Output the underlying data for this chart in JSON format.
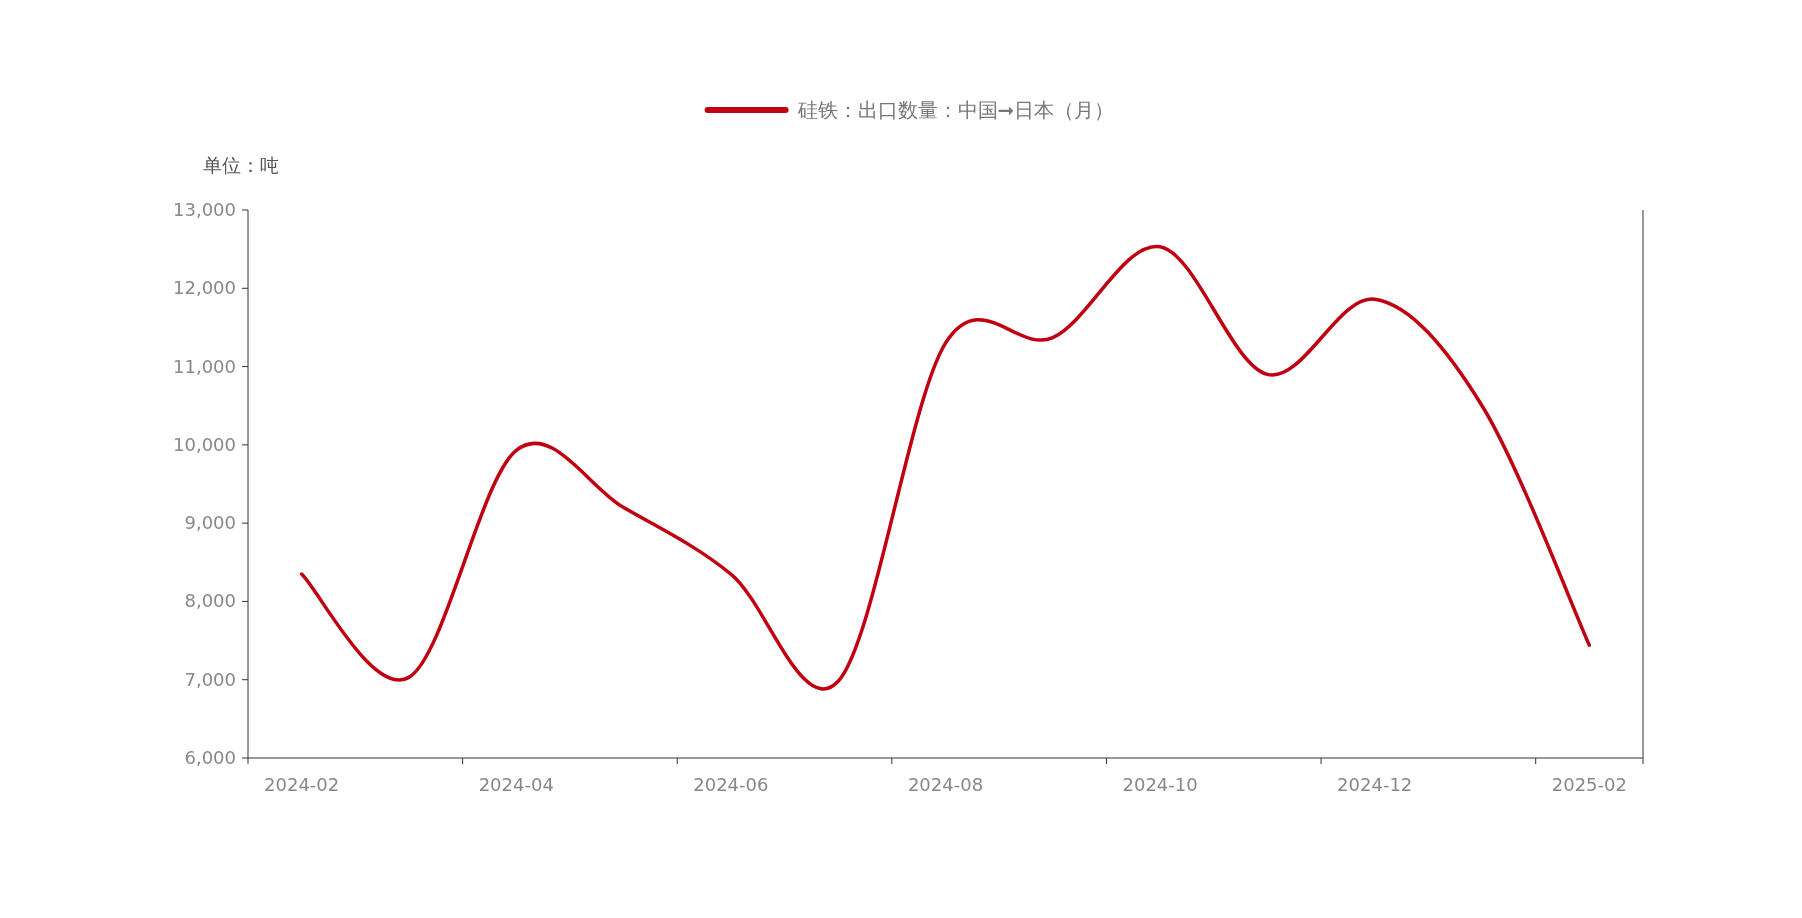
{
  "chart_data": {
    "type": "line",
    "ylabel": "单位：吨",
    "categories": [
      "2024-02",
      null,
      "2024-04",
      null,
      "2024-06",
      null,
      "2024-08",
      null,
      "2024-10",
      null,
      "2024-12",
      null,
      "2025-02"
    ],
    "series": [
      {
        "name": "硅铁：出口数量：中国➞日本（月）",
        "color": "#c00010",
        "values": [
          8350,
          7030,
          9930,
          9200,
          8350,
          6980,
          11300,
          11370,
          12530,
          10900,
          11860,
          10500,
          7440
        ]
      }
    ],
    "ylim": [
      6000,
      13000
    ],
    "yticks": [
      {
        "value": 6000,
        "label": "6,000"
      },
      {
        "value": 7000,
        "label": "7,000"
      },
      {
        "value": 8000,
        "label": "8,000"
      },
      {
        "value": 9000,
        "label": "9,000"
      },
      {
        "value": 10000,
        "label": "10,000"
      },
      {
        "value": 11000,
        "label": "11,000"
      },
      {
        "value": 12000,
        "label": "12,000"
      },
      {
        "value": 13000,
        "label": "13,000"
      }
    ],
    "grid": false,
    "legend": "top",
    "marker": "none",
    "line_style": "solid"
  }
}
